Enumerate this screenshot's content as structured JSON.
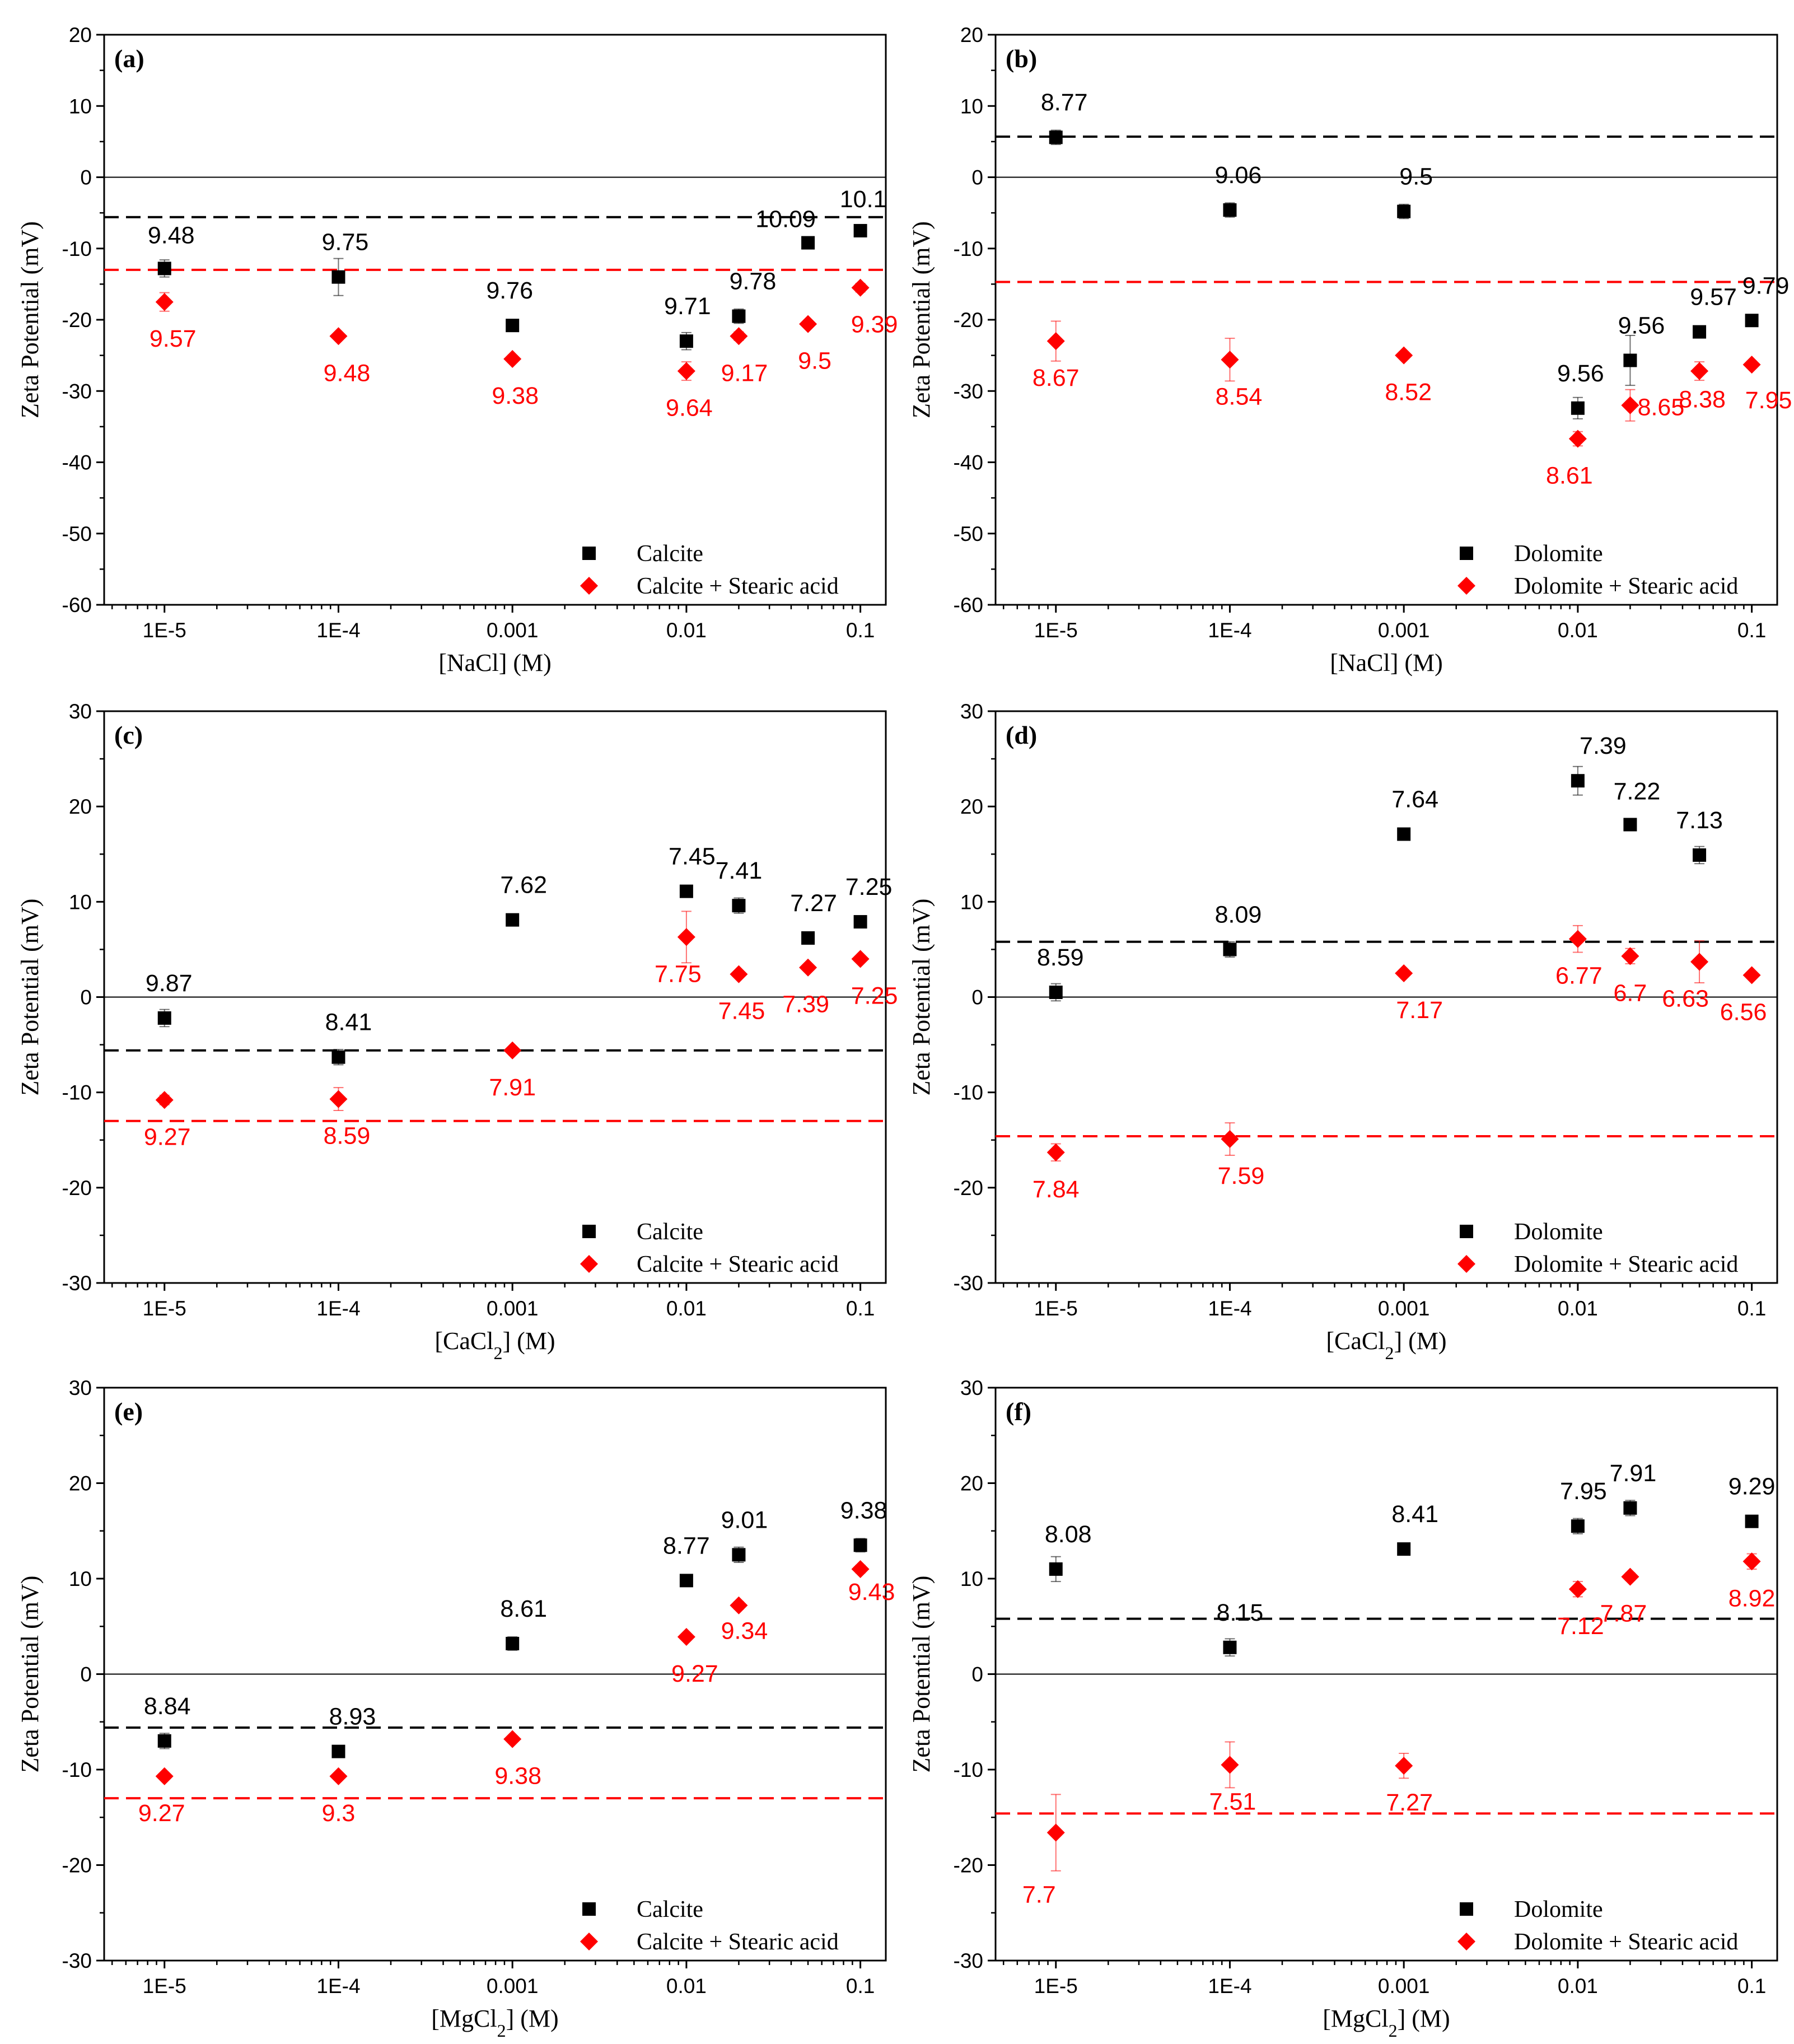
{
  "colors": {
    "mineral": "#000000",
    "treated": "#ff0000"
  },
  "x_tick_labels": [
    "1E-5",
    "1E-4",
    "0.001",
    "0.01",
    "0.1"
  ],
  "chart_data": [
    {
      "type": "scatter",
      "panel": "(a)",
      "xlabel": "[NaCl] (M)",
      "ylabel": "Zeta Potential (mV)",
      "xscale": "log",
      "xlim": [
        4.5e-06,
        0.14
      ],
      "ylim": [
        -60,
        20
      ],
      "yticks": [
        20,
        10,
        0,
        -10,
        -20,
        -30,
        -40,
        -50,
        -60
      ],
      "reference_lines": {
        "mineral": -5.6,
        "treated": -13.0
      },
      "legend": {
        "position": "bottom-right"
      },
      "series": [
        {
          "name": "Calcite",
          "role": "mineral",
          "marker": "square",
          "x": [
            1e-05,
            0.0001,
            0.001,
            0.01,
            0.02,
            0.05,
            0.1
          ],
          "y": [
            -12.8,
            -14.0,
            -20.8,
            -23.0,
            -19.5,
            -9.2,
            -7.5
          ],
          "err": [
            1.2,
            2.6,
            0.6,
            1.2,
            1.0,
            0.4,
            0.4
          ],
          "labels": [
            "9.48",
            "9.75",
            "9.76",
            "9.71",
            "9.78",
            "10.09",
            "10.1"
          ]
        },
        {
          "name": "Calcite + Stearic acid",
          "role": "treated",
          "marker": "diamond",
          "x": [
            1e-05,
            0.0001,
            0.001,
            0.01,
            0.02,
            0.05,
            0.1
          ],
          "y": [
            -17.5,
            -22.3,
            -25.5,
            -27.2,
            -22.3,
            -20.6,
            -15.5
          ],
          "err": [
            1.3,
            0.4,
            0.5,
            1.3,
            0.6,
            0.5,
            0.6
          ],
          "labels": [
            "9.57",
            "9.48",
            "9.38",
            "9.64",
            "9.17",
            "9.5",
            "9.39"
          ]
        }
      ]
    },
    {
      "type": "scatter",
      "panel": "(b)",
      "xlabel": "[NaCl] (M)",
      "ylabel": "Zeta Potential (mV)",
      "xscale": "log",
      "xlim": [
        4.5e-06,
        0.14
      ],
      "ylim": [
        -60,
        20
      ],
      "yticks": [
        20,
        10,
        0,
        -10,
        -20,
        -30,
        -40,
        -50,
        -60
      ],
      "reference_lines": {
        "mineral": 5.7,
        "treated": -14.7
      },
      "legend": {
        "position": "bottom-right"
      },
      "series": [
        {
          "name": "Dolomite",
          "role": "mineral",
          "marker": "square",
          "x": [
            1e-05,
            0.0001,
            0.001,
            0.01,
            0.02,
            0.05,
            0.1
          ],
          "y": [
            5.6,
            -4.6,
            -4.8,
            -32.4,
            -25.7,
            -21.7,
            -20.1
          ],
          "err": [
            1.0,
            1.0,
            1.0,
            1.5,
            3.5,
            0.5,
            0.5
          ],
          "labels": [
            "8.77",
            "9.06",
            "9.5",
            "9.56",
            "9.56",
            "9.57",
            "9.79"
          ]
        },
        {
          "name": "Dolomite + Stearic acid",
          "role": "treated",
          "marker": "diamond",
          "x": [
            1e-05,
            0.0001,
            0.001,
            0.01,
            0.02,
            0.05,
            0.1
          ],
          "y": [
            -23.0,
            -25.6,
            -25.0,
            -36.7,
            -32.0,
            -27.2,
            -26.3
          ],
          "err": [
            2.8,
            3.0,
            0.5,
            1.0,
            2.2,
            1.3,
            0.5
          ],
          "labels": [
            "8.67",
            "8.54",
            "8.52",
            "8.61",
            "8.65",
            "8.38",
            "7.95"
          ]
        }
      ]
    },
    {
      "type": "scatter",
      "panel": "(c)",
      "xlabel": "[CaCl2] (M)",
      "ylabel": "Zeta Potential (mV)",
      "xscale": "log",
      "xlim": [
        4.5e-06,
        0.14
      ],
      "ylim": [
        -30,
        30
      ],
      "yticks": [
        30,
        20,
        10,
        0,
        -10,
        -20,
        -30
      ],
      "reference_lines": {
        "mineral": -5.6,
        "treated": -13.0
      },
      "legend": {
        "position": "bottom-right"
      },
      "series": [
        {
          "name": "Calcite",
          "role": "mineral",
          "marker": "square",
          "x": [
            1e-05,
            0.0001,
            0.001,
            0.01,
            0.02,
            0.05,
            0.1
          ],
          "y": [
            -2.2,
            -6.3,
            8.1,
            11.1,
            9.6,
            6.2,
            7.9
          ],
          "err": [
            0.9,
            0.8,
            0.6,
            0.6,
            0.8,
            0.5,
            0.5
          ],
          "labels": [
            "9.87",
            "8.41",
            "7.62",
            "7.45",
            "7.41",
            "7.27",
            "7.25"
          ]
        },
        {
          "name": "Calcite + Stearic acid",
          "role": "treated",
          "marker": "diamond",
          "x": [
            1e-05,
            0.0001,
            0.001,
            0.01,
            0.02,
            0.05,
            0.1
          ],
          "y": [
            -10.8,
            -10.7,
            -5.6,
            6.3,
            2.4,
            3.1,
            4.0
          ],
          "err": [
            0.5,
            1.2,
            0.3,
            2.7,
            0.3,
            0.3,
            0.3
          ],
          "labels": [
            "9.27",
            "8.59",
            "7.91",
            "7.75",
            "7.45",
            "7.39",
            "7.25"
          ]
        }
      ]
    },
    {
      "type": "scatter",
      "panel": "(d)",
      "xlabel": "[CaCl2] (M)",
      "ylabel": "Zeta Potential (mV)",
      "xscale": "log",
      "xlim": [
        4.5e-06,
        0.14
      ],
      "ylim": [
        -30,
        30
      ],
      "yticks": [
        30,
        20,
        10,
        0,
        -10,
        -20,
        -30
      ],
      "reference_lines": {
        "mineral": 5.8,
        "treated": -14.6
      },
      "legend": {
        "position": "bottom-right"
      },
      "series": [
        {
          "name": "Dolomite",
          "role": "mineral",
          "marker": "square",
          "x": [
            1e-05,
            0.0001,
            0.001,
            0.01,
            0.02,
            0.05,
            0.1
          ],
          "y": [
            0.5,
            5.0,
            17.1,
            22.7,
            18.1,
            14.9,
            null
          ],
          "err": [
            0.9,
            0.8,
            0.4,
            1.5,
            0.5,
            0.9,
            0
          ],
          "labels": [
            "8.59",
            "8.09",
            "7.64",
            "7.39",
            "7.22",
            "7.13",
            null
          ]
        },
        {
          "name": "Dolomite + Stearic acid",
          "role": "treated",
          "marker": "diamond",
          "x": [
            1e-05,
            0.0001,
            0.001,
            0.01,
            0.02,
            0.05,
            0.1
          ],
          "y": [
            -16.3,
            -14.9,
            2.5,
            6.1,
            4.3,
            3.7,
            2.3
          ],
          "err": [
            0.9,
            1.7,
            0.2,
            1.4,
            0.8,
            2.2,
            0.3
          ],
          "labels": [
            "7.84",
            "7.59",
            "7.17",
            "6.77",
            "6.7",
            "6.63",
            "6.56"
          ]
        }
      ]
    },
    {
      "type": "scatter",
      "panel": "(e)",
      "xlabel": "[MgCl2] (M)",
      "ylabel": "Zeta Potential (mV)",
      "xscale": "log",
      "xlim": [
        4.5e-06,
        0.14
      ],
      "ylim": [
        -30,
        30
      ],
      "yticks": [
        30,
        20,
        10,
        0,
        -10,
        -20,
        -30
      ],
      "reference_lines": {
        "mineral": -5.6,
        "treated": -13.0
      },
      "legend": {
        "position": "bottom-right"
      },
      "series": [
        {
          "name": "Calcite",
          "role": "mineral",
          "marker": "square",
          "x": [
            1e-05,
            0.0001,
            0.001,
            0.01,
            0.02,
            0.1
          ],
          "y": [
            -7.0,
            -8.1,
            3.2,
            9.8,
            12.5,
            13.5
          ],
          "err": [
            0.8,
            0.4,
            0.7,
            0.4,
            0.8,
            0.7
          ],
          "labels": [
            "8.84",
            "8.93",
            "8.61",
            "8.77",
            "9.01",
            "9.38"
          ]
        },
        {
          "name": "Calcite + Stearic acid",
          "role": "treated",
          "marker": "diamond",
          "x": [
            1e-05,
            0.0001,
            0.001,
            0.01,
            0.02,
            0.1
          ],
          "y": [
            -10.7,
            -10.7,
            -6.8,
            3.9,
            7.2,
            11.0
          ],
          "err": [
            0.3,
            0.3,
            0.3,
            0.3,
            0.4,
            0.4
          ],
          "labels": [
            "9.27",
            "9.3",
            "9.38",
            "9.27",
            "9.34",
            "9.43"
          ]
        }
      ]
    },
    {
      "type": "scatter",
      "panel": "(f)",
      "xlabel": "[MgCl2] (M)",
      "ylabel": "Zeta Potential (mV)",
      "xscale": "log",
      "xlim": [
        4.5e-06,
        0.14
      ],
      "ylim": [
        -30,
        30
      ],
      "yticks": [
        30,
        20,
        10,
        0,
        -10,
        -20,
        -30
      ],
      "reference_lines": {
        "mineral": 5.8,
        "treated": -14.6
      },
      "legend": {
        "position": "bottom-right"
      },
      "series": [
        {
          "name": "Dolomite",
          "role": "mineral",
          "marker": "square",
          "x": [
            1e-05,
            0.0001,
            0.001,
            0.01,
            0.02,
            0.1
          ],
          "y": [
            11.0,
            2.8,
            13.1,
            15.5,
            17.4,
            16.0
          ],
          "err": [
            1.3,
            0.9,
            0.4,
            0.8,
            0.8,
            0.4
          ],
          "labels": [
            "8.08",
            "8.15",
            "8.41",
            "7.95",
            "7.91",
            "9.29"
          ]
        },
        {
          "name": "Dolomite + Stearic acid",
          "role": "treated",
          "marker": "diamond",
          "x": [
            1e-05,
            0.0001,
            0.001,
            0.01,
            0.02,
            0.1
          ],
          "y": [
            -16.6,
            -9.5,
            -9.6,
            8.9,
            10.2,
            11.8
          ],
          "err": [
            4.0,
            2.4,
            1.3,
            0.8,
            0.4,
            0.8
          ],
          "labels": [
            "7.7",
            "7.51",
            "7.27",
            "7.12",
            "7.87",
            "8.92"
          ]
        }
      ]
    }
  ]
}
